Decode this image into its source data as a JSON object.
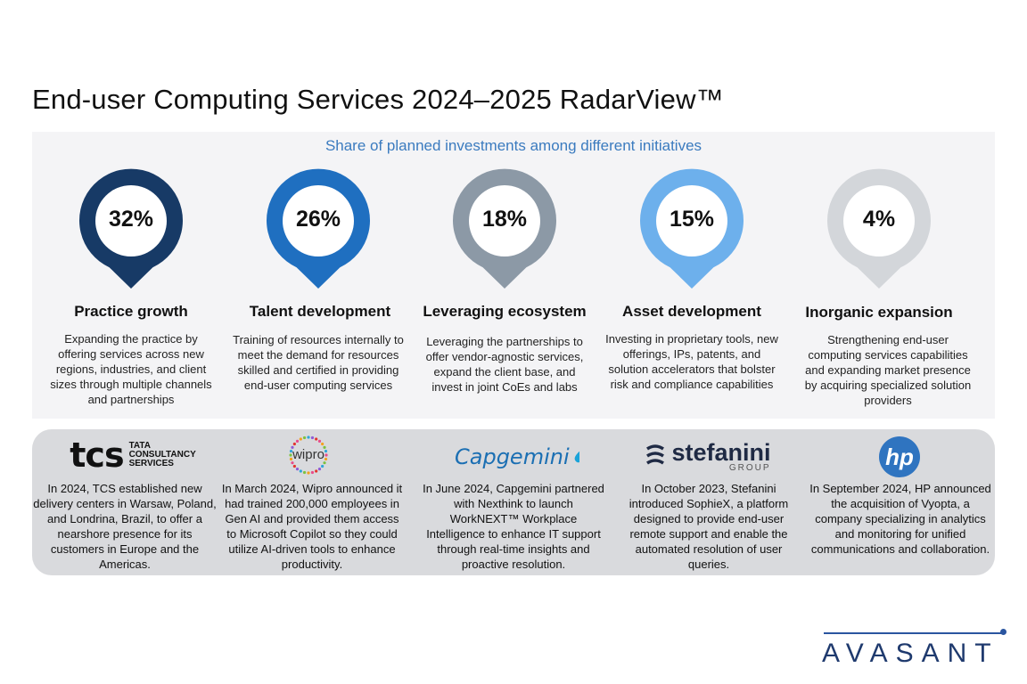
{
  "title": "End-user Computing Services 2024–2025 RadarView™",
  "chart_data": {
    "type": "pie",
    "title": "Share of planned investments among different initiatives",
    "unit": "%",
    "categories": [
      "Practice growth",
      "Talent development",
      "Leveraging ecosystem",
      "Asset development",
      "Inorganic expansion"
    ],
    "values": [
      32,
      26,
      18,
      15,
      4
    ],
    "value_labels": [
      "32%",
      "26%",
      "18%",
      "15%",
      "4%"
    ],
    "colors": [
      "#173a66",
      "#1f6fc0",
      "#8c99a6",
      "#6db0ec",
      "#d3d6da"
    ],
    "descriptions": [
      "Expanding the practice by offering services across new regions, industries, and client sizes through multiple channels and partnerships",
      "Training of resources internally to meet the demand for resources skilled and certified in providing end-user computing services",
      "Leveraging the partnerships to offer vendor-agnostic services, expand the client base, and invest in joint CoEs and labs",
      "Investing in proprietary tools, new offerings, IPs, patents, and solution accelerators that bolster risk and compliance capabilities",
      "Strengthening end-user computing services capabilities and expanding market presence by acquiring specialized solution providers"
    ]
  },
  "vendors": [
    {
      "logo_icon": "tcs-logo",
      "logo_text": "tcs",
      "logo_sub": [
        "TATA",
        "CONSULTANCY",
        "SERVICES"
      ],
      "text": "In 2024, TCS established new delivery centers in Warsaw, Poland, and Londrina, Brazil, to offer a nearshore presence for its customers in Europe and the Americas."
    },
    {
      "logo_icon": "wipro-logo",
      "logo_text": "wipro",
      "text": "In March 2024, Wipro announced it had trained 200,000 employees in Gen AI and provided them access to Microsoft Copilot so they could utilize AI-driven tools to enhance productivity."
    },
    {
      "logo_icon": "capgemini-logo",
      "logo_text": "Capgemini",
      "text": "In June 2024, Capgemini partnered with Nexthink to launch WorkNEXT™ Workplace Intelligence to enhance IT support through real-time insights and proactive resolution."
    },
    {
      "logo_icon": "stefanini-logo",
      "logo_text": "stefanini",
      "logo_sub": "GROUP",
      "text": "In October 2023, Stefanini introduced SophieX, a platform designed to provide end-user remote support and enable the automated resolution of user queries."
    },
    {
      "logo_icon": "hp-logo",
      "logo_text": "hp",
      "text": "In September 2024, HP announced the acquisition of Vyopta, a company specializing in analytics and monitoring for unified communications and collaboration."
    }
  ],
  "brand": {
    "name": "AVASANT",
    "color": "#1f3a6e"
  }
}
